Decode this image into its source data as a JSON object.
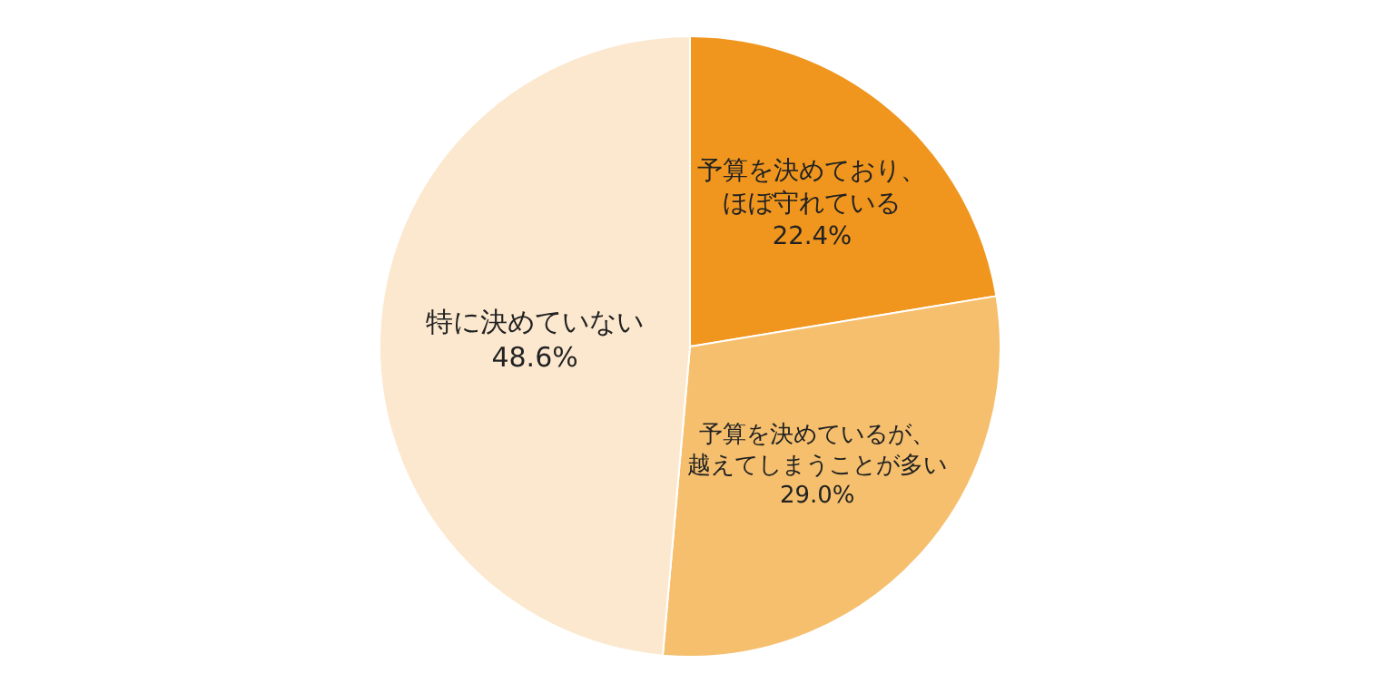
{
  "chart_data": {
    "type": "pie",
    "categories": [
      "予算を決めており、ほぼ守れている",
      "予算を決めているが、越えてしまうことが多い",
      "特に決めていない"
    ],
    "values": [
      22.4,
      29.0,
      48.6
    ],
    "value_labels": [
      "22.4%",
      "29.0%",
      "48.6%"
    ],
    "colors": [
      "#f0961e",
      "#f5bf6e",
      "#fce8cf"
    ],
    "legend": false
  }
}
